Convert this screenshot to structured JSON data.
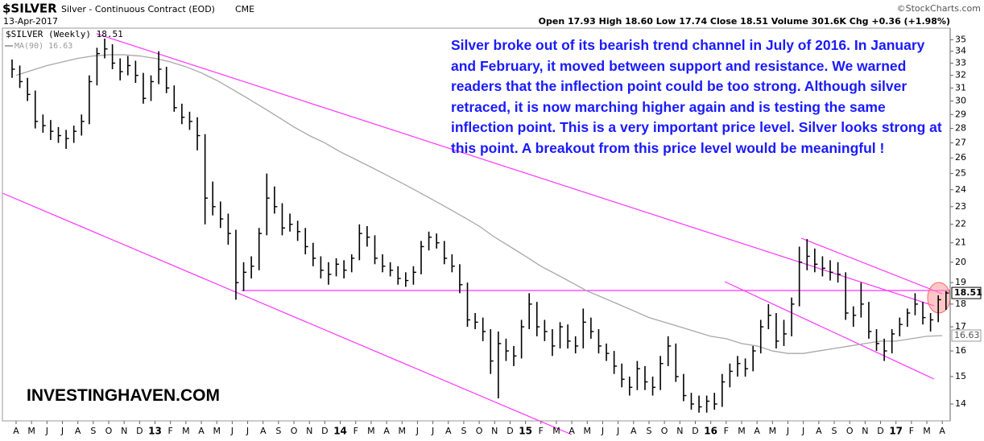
{
  "chart_data": {
    "type": "ohlc",
    "title": "$SILVER",
    "subtitle": "Silver - Continuous Contract (EOD)",
    "exchange": "CME",
    "date": "13-Apr-2017",
    "quote": "Open 17.93 High 18.60 Low 17.74 Close 18.51 Volume 301.6K Chg +0.36 (+1.98%)",
    "source": "©StockCharts.com",
    "watermark": "INVESTINGHAVEN.COM",
    "annotation": "Silver broke out of its bearish trend channel in July of 2016. In January and February, it moved between support and resistance. We warned readers that the inflection point could be too strong. Although silver retraced, it is now marching higher again and is testing the same inflection point. This is a very important price level. Silver looks strong at this point. A breakout from this price level would be meaningful !",
    "categories": [
      "A",
      "M",
      "J",
      "J",
      "A",
      "S",
      "O",
      "N",
      "D",
      "13",
      "F",
      "M",
      "A",
      "M",
      "J",
      "J",
      "A",
      "S",
      "O",
      "N",
      "D",
      "14",
      "F",
      "M",
      "A",
      "M",
      "J",
      "J",
      "A",
      "S",
      "O",
      "N",
      "D",
      "15",
      "F",
      "M",
      "A",
      "M",
      "J",
      "J",
      "A",
      "S",
      "O",
      "N",
      "D",
      "16",
      "F",
      "M",
      "A",
      "M",
      "J",
      "J",
      "A",
      "S",
      "O",
      "N",
      "D",
      "17",
      "F",
      "M",
      "A"
    ],
    "log_scale": true,
    "ylim": [
      13.5,
      36.4
    ],
    "yticks": [
      14,
      15,
      16,
      17,
      18,
      19,
      20,
      21,
      22,
      23,
      24,
      25,
      26,
      27,
      28,
      29,
      30,
      31,
      32,
      33,
      34,
      35
    ],
    "series": [
      {
        "name": "$SILVER (Weekly) 18.51",
        "color": "#000000",
        "high": [
          33.3,
          32.8,
          31.8,
          30.8,
          29.0,
          28.6,
          28.1,
          27.9,
          28.2,
          29.0,
          32.0,
          34.3,
          35.1,
          34.6,
          33.4,
          33.6,
          33.2,
          32.2,
          32.0,
          34.0,
          32.7,
          31.2,
          29.8,
          29.2,
          28.8,
          27.6,
          24.5,
          23.3,
          22.6,
          21.7,
          20.0,
          20.3,
          21.8,
          25.0,
          24.2,
          23.2,
          22.6,
          22.2,
          21.8,
          21.0,
          20.3,
          20.0,
          20.2,
          20.1,
          20.4,
          22.0,
          21.9,
          21.4,
          20.4,
          20.0,
          19.8,
          19.5,
          19.8,
          21.1,
          21.6,
          21.5,
          21.1,
          20.4,
          19.9,
          19.0,
          17.6,
          17.4,
          16.9,
          16.8,
          16.5,
          16.2,
          17.3,
          18.5,
          18.1,
          17.3,
          16.9,
          17.2,
          17.1,
          16.6,
          17.8,
          17.4,
          16.9,
          16.3,
          16.0,
          15.5,
          15.0,
          15.6,
          15.4,
          15.0,
          15.8,
          16.6,
          16.3,
          15.1,
          14.4,
          14.3,
          14.3,
          14.4,
          15.1,
          15.5,
          15.8,
          15.7,
          16.2,
          17.3,
          18.0,
          17.6,
          17.3,
          18.3,
          20.8,
          21.2,
          20.7,
          20.3,
          20.1,
          20.0,
          19.5,
          17.9,
          19.0,
          18.1,
          16.9,
          16.5,
          16.9,
          17.4,
          17.8,
          18.5,
          18.1,
          17.6,
          18.4,
          18.6
        ],
        "low": [
          31.8,
          31.0,
          30.0,
          28.0,
          27.7,
          27.2,
          27.0,
          26.6,
          27.0,
          27.5,
          28.3,
          31.2,
          33.4,
          32.5,
          31.6,
          32.0,
          31.4,
          29.8,
          30.0,
          31.3,
          30.6,
          29.2,
          28.3,
          27.9,
          26.5,
          22.0,
          22.5,
          21.8,
          20.9,
          18.2,
          18.6,
          19.2,
          19.6,
          21.4,
          22.6,
          21.4,
          21.6,
          21.1,
          20.4,
          19.8,
          19.2,
          18.9,
          19.3,
          19.2,
          19.5,
          20.1,
          20.8,
          19.9,
          19.5,
          19.3,
          18.9,
          18.8,
          18.9,
          19.4,
          20.6,
          20.7,
          19.9,
          19.5,
          18.5,
          17.0,
          16.9,
          16.4,
          15.1,
          14.2,
          15.6,
          15.4,
          15.7,
          16.9,
          16.6,
          16.4,
          15.8,
          16.1,
          16.1,
          15.9,
          16.1,
          16.5,
          15.9,
          15.6,
          15.1,
          14.6,
          14.3,
          14.5,
          14.5,
          14.3,
          14.5,
          15.4,
          14.8,
          14.1,
          13.8,
          13.7,
          13.7,
          13.8,
          13.9,
          14.6,
          15.0,
          15.0,
          15.2,
          15.9,
          16.9,
          16.1,
          16.2,
          16.6,
          17.9,
          19.6,
          19.5,
          19.3,
          19.1,
          19.0,
          17.3,
          17.0,
          17.4,
          16.5,
          16.0,
          15.6,
          15.9,
          16.6,
          17.0,
          17.5,
          17.1,
          16.8,
          17.2,
          17.74
        ],
        "close": [
          32.5,
          31.5,
          30.5,
          28.5,
          28.2,
          27.8,
          27.5,
          27.3,
          27.8,
          28.5,
          31.5,
          33.8,
          34.2,
          33.0,
          32.3,
          32.8,
          32.0,
          30.2,
          31.5,
          32.5,
          31.0,
          29.5,
          28.8,
          28.5,
          27.5,
          23.5,
          23.0,
          22.3,
          21.5,
          19.0,
          19.5,
          19.8,
          21.5,
          23.5,
          23.0,
          21.8,
          22.0,
          21.6,
          20.8,
          20.2,
          19.6,
          19.4,
          19.9,
          19.6,
          20.2,
          21.5,
          21.3,
          20.2,
          19.8,
          19.6,
          19.2,
          19.1,
          19.5,
          20.8,
          21.3,
          21.0,
          20.2,
          19.8,
          18.9,
          17.3,
          17.2,
          16.8,
          15.6,
          16.3,
          16.0,
          15.8,
          17.0,
          18.0,
          17.0,
          16.8,
          16.2,
          17.0,
          16.4,
          16.2,
          17.2,
          16.8,
          16.2,
          15.9,
          15.4,
          14.9,
          14.6,
          15.3,
          14.8,
          14.6,
          15.5,
          16.2,
          15.0,
          14.3,
          14.0,
          13.9,
          14.1,
          14.0,
          14.8,
          15.2,
          15.5,
          15.3,
          16.0,
          17.0,
          17.5,
          16.4,
          16.7,
          18.0,
          20.0,
          20.3,
          19.9,
          19.7,
          19.5,
          19.4,
          17.6,
          17.5,
          18.0,
          16.8,
          16.3,
          16.0,
          16.7,
          17.1,
          17.6,
          18.0,
          17.4,
          17.3,
          18.2,
          18.51
        ]
      },
      {
        "name": "MA(90) 16.63",
        "color": "#a8a8a8",
        "values": [
          32.0,
          32.4,
          32.8,
          33.1,
          33.4,
          33.6,
          33.7,
          33.7,
          33.6,
          33.4,
          33.1,
          32.7,
          32.2,
          31.6,
          30.9,
          30.2,
          29.5,
          28.8,
          28.1,
          27.5,
          27.0,
          26.4,
          25.9,
          25.4,
          24.9,
          24.4,
          23.9,
          23.4,
          22.9,
          22.4,
          21.9,
          21.3,
          20.8,
          20.3,
          19.8,
          19.4,
          19.0,
          18.6,
          18.3,
          18.0,
          17.7,
          17.4,
          17.2,
          17.0,
          16.8,
          16.6,
          16.5,
          16.3,
          16.2,
          16.0,
          15.9,
          15.9,
          16.0,
          16.1,
          16.2,
          16.3,
          16.4,
          16.4,
          16.5,
          16.6,
          16.63
        ]
      }
    ]
  }
}
